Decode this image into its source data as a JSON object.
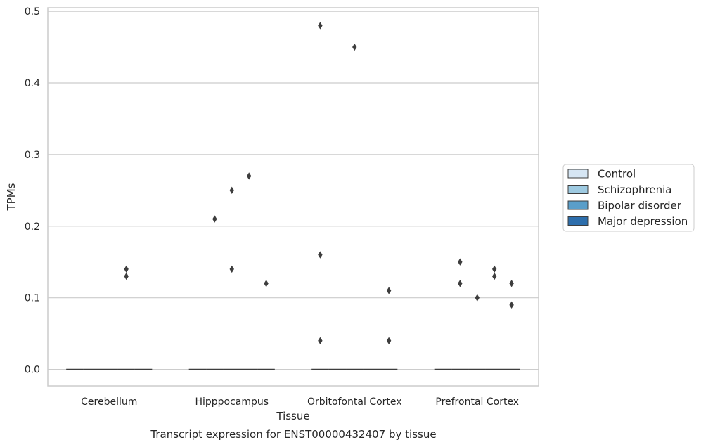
{
  "chart_data": {
    "type": "box",
    "caption": "Transcript expression for ENST00000432407 by tissue",
    "xlabel": "Tissue",
    "ylabel": "TPMs",
    "ylim": [
      -0.023,
      0.505
    ],
    "yticks": [
      0.0,
      0.1,
      0.2,
      0.3,
      0.4,
      0.5
    ],
    "ytick_labels": [
      "0.0",
      "0.1",
      "0.2",
      "0.3",
      "0.4",
      "0.5"
    ],
    "grid": true,
    "legend_position": "right",
    "categories": [
      "Cerebellum",
      "Hipppocampus",
      "Orbitofontal Cortex",
      "Prefrontal Cortex"
    ],
    "series": [
      {
        "name": "Control",
        "color": "#d6e6f4",
        "median": [
          0,
          0,
          0,
          0
        ],
        "outliers": [
          [],
          [],
          [
            0.48,
            0.16,
            0.04
          ],
          []
        ]
      },
      {
        "name": "Schizophrenia",
        "color": "#9ecae1",
        "median": [
          0,
          0,
          0,
          0
        ],
        "outliers": [
          [],
          [
            0.21
          ],
          [],
          [
            0.15,
            0.12
          ]
        ]
      },
      {
        "name": "Bipolar disorder",
        "color": "#5a9ec9",
        "median": [
          0,
          0,
          0,
          0
        ],
        "outliers": [
          [],
          [
            0.25,
            0.14
          ],
          [
            0.45
          ],
          [
            0.1
          ]
        ]
      },
      {
        "name": "Major depression",
        "color": "#2d6eac",
        "median": [
          0,
          0,
          0,
          0
        ],
        "outliers": [
          [
            0.14,
            0.13
          ],
          [
            0.27
          ],
          [],
          [
            0.14,
            0.13
          ]
        ]
      },
      {
        "name": "",
        "color": "#2d6eac",
        "median": [
          0,
          0,
          0,
          0
        ],
        "outliers": [
          [],
          [
            0.12
          ],
          [
            0.11,
            0.04
          ],
          [
            0.12,
            0.09
          ]
        ]
      }
    ]
  }
}
